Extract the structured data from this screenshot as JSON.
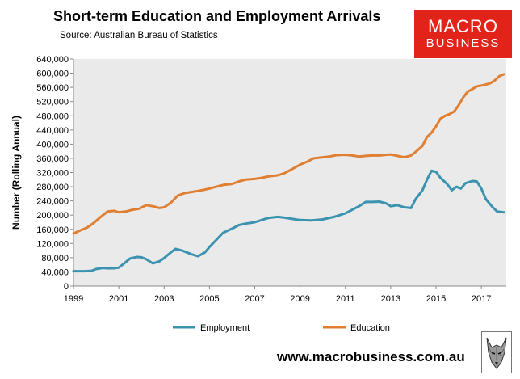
{
  "header": {
    "title": "Short-term Education and Employment Arrivals",
    "source": "Source: Australian Bureau of Statistics"
  },
  "logo": {
    "line1": "MACRO",
    "line2": "BUSINESS",
    "color": "#e2231a"
  },
  "footer": {
    "url": "www.macrobusiness.com.au"
  },
  "chart_data": {
    "type": "line",
    "title": "Short-term Education and Employment Arrivals",
    "ylabel": "Number (Rolling Annual)",
    "xlabel": "",
    "xlim": [
      1999,
      2018.1
    ],
    "ylim": [
      0,
      640000
    ],
    "y_ticks": [
      0,
      40000,
      80000,
      120000,
      160000,
      200000,
      240000,
      280000,
      320000,
      360000,
      400000,
      440000,
      480000,
      520000,
      560000,
      600000,
      640000
    ],
    "y_tick_labels": [
      "0",
      "40,000",
      "80,000",
      "120,000",
      "160,000",
      "200,000",
      "240,000",
      "280,000",
      "320,000",
      "360,000",
      "400,000",
      "440,000",
      "480,000",
      "520,000",
      "560,000",
      "600,000",
      "640,000"
    ],
    "x_ticks": [
      1999,
      2001,
      2003,
      2005,
      2007,
      2009,
      2011,
      2013,
      2015,
      2017
    ],
    "x_tick_labels": [
      "1999",
      "2001",
      "2003",
      "2005",
      "2007",
      "2009",
      "2011",
      "2013",
      "2015",
      "2017"
    ],
    "grid": false,
    "plot_background": "#eaeaea",
    "legend": "bottom",
    "series": [
      {
        "name": "Employment",
        "color": "#3b93b0",
        "x": [
          1999.0,
          1999.5,
          1999.8,
          2000.0,
          2000.3,
          2000.5,
          2000.8,
          2001.0,
          2001.2,
          2001.5,
          2001.8,
          2002.0,
          2002.2,
          2002.5,
          2002.8,
          2003.0,
          2003.2,
          2003.5,
          2003.8,
          2004.0,
          2004.2,
          2004.5,
          2004.8,
          2005.0,
          2005.3,
          2005.6,
          2006.0,
          2006.3,
          2006.6,
          2007.0,
          2007.3,
          2007.6,
          2008.0,
          2008.3,
          2008.6,
          2009.0,
          2009.5,
          2010.0,
          2010.5,
          2011.0,
          2011.3,
          2011.6,
          2011.9,
          2012.2,
          2012.5,
          2012.8,
          2013.0,
          2013.3,
          2013.6,
          2013.9,
          2014.1,
          2014.4,
          2014.6,
          2014.8,
          2015.0,
          2015.2,
          2015.5,
          2015.7,
          2015.9,
          2016.1,
          2016.3,
          2016.6,
          2016.8,
          2017.0,
          2017.2,
          2017.5,
          2017.7,
          2018.0
        ],
        "values": [
          42000,
          42000,
          43000,
          48000,
          51000,
          50000,
          50000,
          52000,
          62000,
          78000,
          82000,
          81000,
          76000,
          64000,
          70000,
          79000,
          90000,
          105000,
          100000,
          95000,
          90000,
          84000,
          95000,
          110000,
          130000,
          150000,
          162000,
          172000,
          176000,
          180000,
          186000,
          192000,
          195000,
          193000,
          190000,
          186000,
          185000,
          188000,
          195000,
          205000,
          215000,
          225000,
          237000,
          237000,
          238000,
          233000,
          225000,
          228000,
          222000,
          220000,
          245000,
          270000,
          300000,
          325000,
          322000,
          305000,
          287000,
          270000,
          280000,
          275000,
          290000,
          296000,
          295000,
          275000,
          245000,
          222000,
          210000,
          208000
        ]
      },
      {
        "name": "Education",
        "color": "#e07f32",
        "x": [
          1999.0,
          1999.3,
          1999.6,
          1999.9,
          2000.2,
          2000.5,
          2000.8,
          2001.0,
          2001.3,
          2001.6,
          2001.9,
          2002.2,
          2002.5,
          2002.8,
          2003.0,
          2003.3,
          2003.6,
          2003.9,
          2004.2,
          2004.5,
          2004.8,
          2005.0,
          2005.3,
          2005.6,
          2006.0,
          2006.3,
          2006.6,
          2007.0,
          2007.3,
          2007.6,
          2008.0,
          2008.3,
          2008.6,
          2009.0,
          2009.3,
          2009.6,
          2010.0,
          2010.3,
          2010.6,
          2011.0,
          2011.3,
          2011.6,
          2011.9,
          2012.2,
          2012.5,
          2012.8,
          2013.0,
          2013.3,
          2013.6,
          2013.9,
          2014.1,
          2014.4,
          2014.6,
          2014.8,
          2015.0,
          2015.2,
          2015.4,
          2015.6,
          2015.8,
          2016.0,
          2016.2,
          2016.4,
          2016.6,
          2016.8,
          2017.0,
          2017.2,
          2017.4,
          2017.6,
          2017.8,
          2018.0
        ],
        "values": [
          148000,
          157000,
          165000,
          178000,
          195000,
          210000,
          212000,
          208000,
          210000,
          215000,
          218000,
          228000,
          225000,
          220000,
          222000,
          235000,
          255000,
          262000,
          265000,
          268000,
          272000,
          275000,
          280000,
          285000,
          288000,
          295000,
          300000,
          302000,
          305000,
          309000,
          312000,
          318000,
          328000,
          342000,
          350000,
          360000,
          363000,
          365000,
          369000,
          370000,
          368000,
          365000,
          367000,
          368000,
          368000,
          370000,
          371000,
          367000,
          363000,
          368000,
          378000,
          395000,
          420000,
          432000,
          450000,
          472000,
          480000,
          485000,
          492000,
          510000,
          532000,
          548000,
          555000,
          563000,
          565000,
          568000,
          572000,
          580000,
          592000,
          597000
        ]
      }
    ]
  }
}
